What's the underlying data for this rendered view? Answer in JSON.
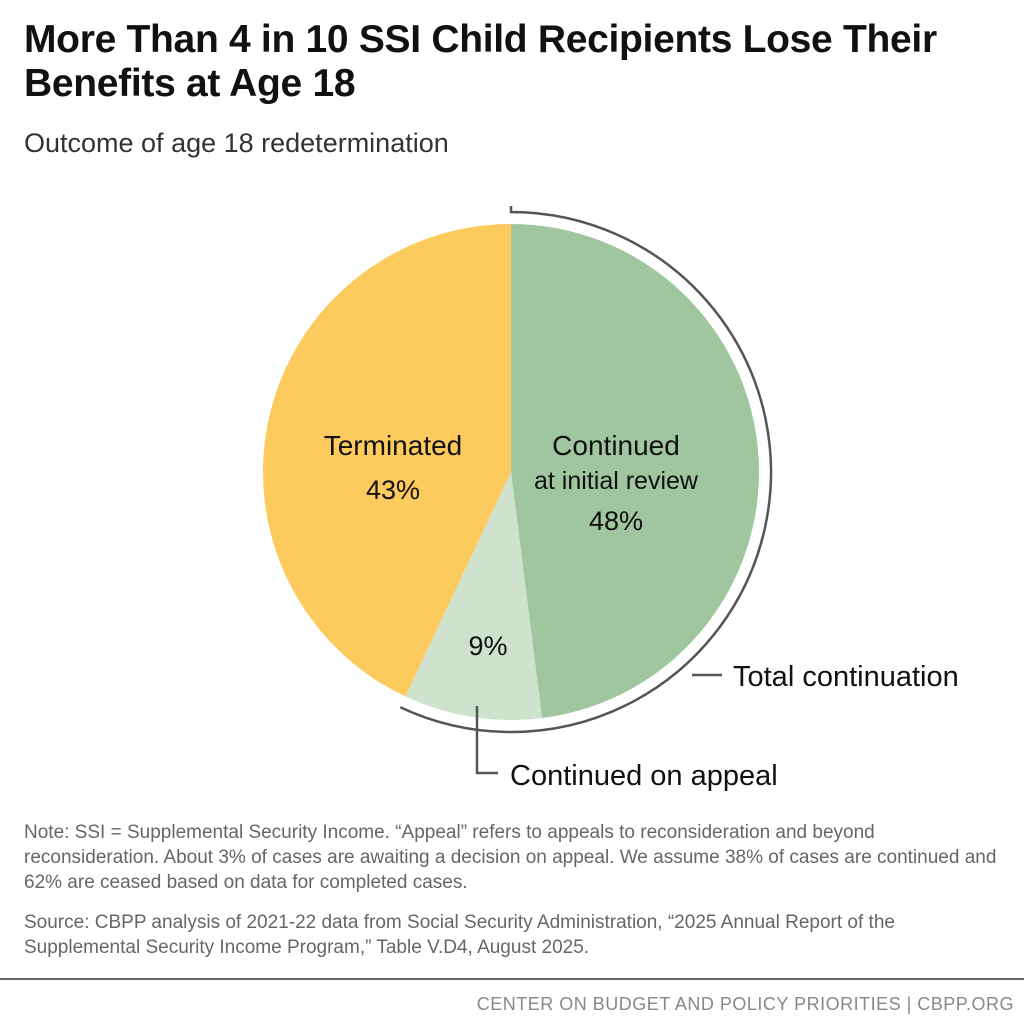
{
  "title": "More Than 4 in 10 SSI Child Recipients Lose Their Benefits at Age 18",
  "subtitle": "Outcome of age 18 redetermination",
  "chart_data": {
    "type": "pie",
    "start": "12 o'clock, clockwise",
    "slices": [
      {
        "label_line1": "Continued",
        "label_line2": "at initial review",
        "value": 48,
        "value_label": "48%",
        "color": "#A0C69F"
      },
      {
        "label_line1": "",
        "label_line2": "",
        "value": 9,
        "value_label": "9%",
        "color": "#CFE2CE"
      },
      {
        "label_line1": "Terminated",
        "label_line2": "",
        "value": 43,
        "value_label": "43%",
        "color": "#FDCA5E"
      }
    ],
    "annotations": {
      "total_continuation": "Total continuation",
      "continued_on_appeal": "Continued on appeal"
    }
  },
  "note": "Note: SSI = Supplemental Security Income. “Appeal” refers to appeals to reconsideration and beyond reconsideration. About 3% of cases are awaiting a decision on appeal. We assume 38% of cases are continued and 62% are ceased based on data for completed cases.",
  "source": "Source: CBPP analysis of 2021-22 data from Social Security Administration, “2025 Annual Report of the Supplemental Security Income Program,” Table V.D4, August 2025.",
  "footer": "CENTER ON BUDGET AND POLICY PRIORITIES | CBPP.ORG"
}
